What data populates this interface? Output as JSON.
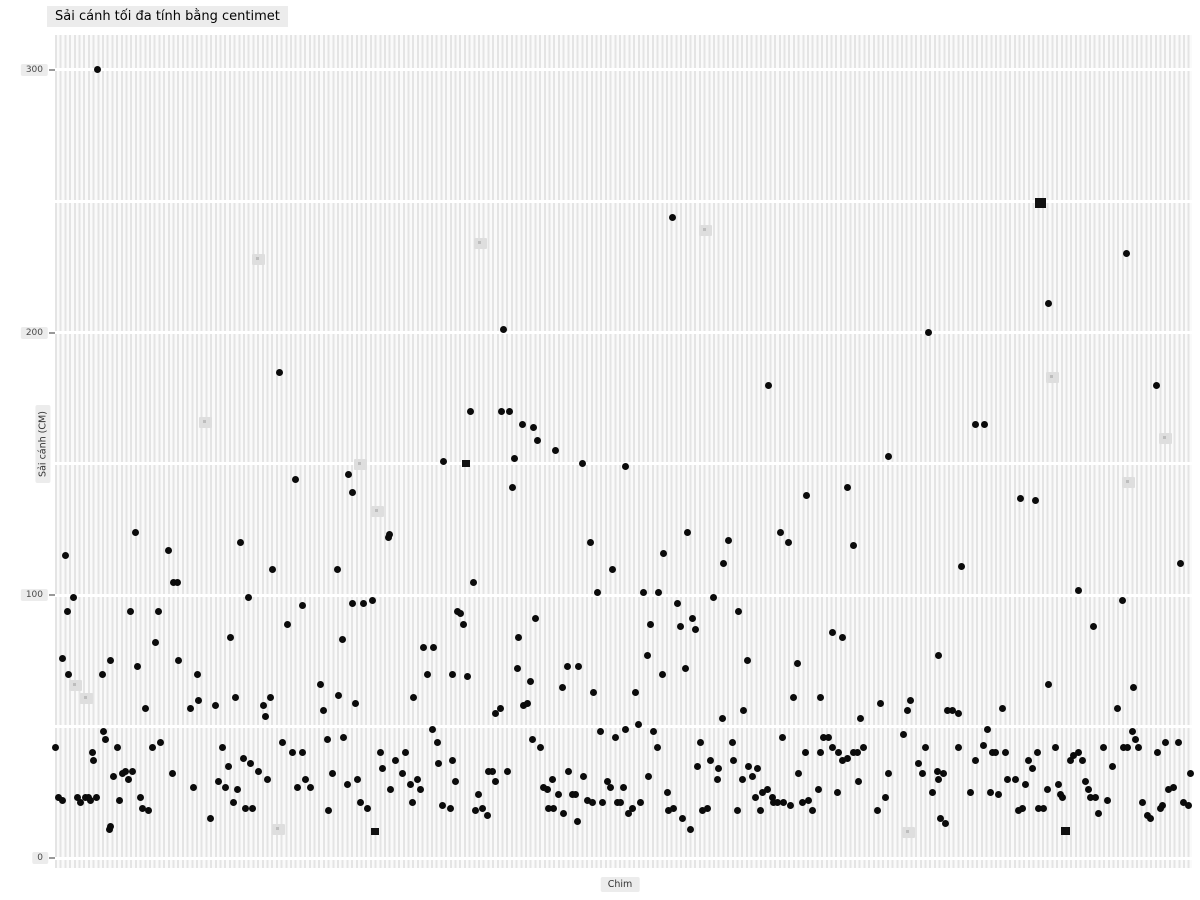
{
  "title": "Sải cánh tối đa tính bằng centimet",
  "x_axis": {
    "label": "Chim"
  },
  "y_axis": {
    "label": "Sải cánh (CM)",
    "ticks": [
      {
        "value": 0,
        "label": "0"
      },
      {
        "value": 100,
        "label": "100"
      },
      {
        "value": 200,
        "label": "200"
      },
      {
        "value": 300,
        "label": "300"
      }
    ],
    "gridlines_cm": [
      0,
      50,
      100,
      150,
      200,
      250,
      300
    ]
  },
  "colors": {
    "background": "#ffffff",
    "stripe": "#e4e4e4",
    "stripe_gap": "#fafafa",
    "point": "#0b0b0b",
    "label_box": "#ececec",
    "tick_text": "#4a4a4a",
    "gridline": "#ffffff"
  },
  "chart_data": {
    "type": "scatter",
    "title": "Sải cánh tối đa tính bằng centimet",
    "xlabel": "Chim",
    "ylabel": "Sải cánh (CM)",
    "ylim": [
      0,
      315
    ],
    "x_unit": "pixel column per bird category (unlabeled categorical axis)",
    "y_unit": "cm",
    "points": [
      [
        97,
        300
      ],
      [
        672,
        244
      ],
      [
        1126,
        230
      ],
      [
        1048,
        211
      ],
      [
        503,
        201
      ],
      [
        928,
        200
      ],
      [
        279,
        185
      ],
      [
        768,
        180
      ],
      [
        1156,
        180
      ],
      [
        470,
        170
      ],
      [
        501,
        170
      ],
      [
        509,
        170
      ],
      [
        975,
        165
      ],
      [
        984,
        165
      ],
      [
        522,
        165
      ],
      [
        533,
        164
      ],
      [
        537,
        159
      ],
      [
        555,
        155
      ],
      [
        443,
        151
      ],
      [
        514,
        152
      ],
      [
        582,
        150
      ],
      [
        512,
        141
      ],
      [
        295,
        144
      ],
      [
        348,
        146
      ],
      [
        352,
        139
      ],
      [
        389,
        123
      ],
      [
        806,
        138
      ],
      [
        847,
        141
      ],
      [
        888,
        153
      ],
      [
        1020,
        137
      ],
      [
        1035,
        136
      ],
      [
        625,
        149
      ],
      [
        135,
        124
      ],
      [
        240,
        120
      ],
      [
        168,
        117
      ],
      [
        65,
        115
      ],
      [
        388,
        122
      ],
      [
        728,
        121
      ],
      [
        687,
        124
      ],
      [
        780,
        124
      ],
      [
        853,
        119
      ],
      [
        788,
        120
      ],
      [
        590,
        120
      ],
      [
        663,
        116
      ],
      [
        723,
        112
      ],
      [
        612,
        110
      ],
      [
        473,
        105
      ],
      [
        173,
        105
      ],
      [
        177,
        105
      ],
      [
        272,
        110
      ],
      [
        337,
        110
      ],
      [
        73,
        99
      ],
      [
        248,
        99
      ],
      [
        372,
        98
      ],
      [
        363,
        97
      ],
      [
        352,
        97
      ],
      [
        597,
        101
      ],
      [
        643,
        101
      ],
      [
        658,
        101
      ],
      [
        677,
        97
      ],
      [
        713,
        99
      ],
      [
        961,
        111
      ],
      [
        1078,
        102
      ],
      [
        1122,
        98
      ],
      [
        1180,
        112
      ],
      [
        67,
        94
      ],
      [
        130,
        94
      ],
      [
        158,
        94
      ],
      [
        302,
        96
      ],
      [
        457,
        94
      ],
      [
        460,
        93
      ],
      [
        463,
        89
      ],
      [
        535,
        91
      ],
      [
        650,
        89
      ],
      [
        692,
        91
      ],
      [
        680,
        88
      ],
      [
        695,
        87
      ],
      [
        738,
        94
      ],
      [
        832,
        86
      ],
      [
        842,
        84
      ],
      [
        287,
        89
      ],
      [
        230,
        84
      ],
      [
        155,
        82
      ],
      [
        342,
        83
      ],
      [
        423,
        80
      ],
      [
        433,
        80
      ],
      [
        518,
        84
      ],
      [
        1093,
        88
      ],
      [
        647,
        77
      ],
      [
        110,
        75
      ],
      [
        137,
        73
      ],
      [
        178,
        75
      ],
      [
        62,
        76
      ],
      [
        68,
        70
      ],
      [
        102,
        70
      ],
      [
        197,
        70
      ],
      [
        747,
        75
      ],
      [
        517,
        72
      ],
      [
        567,
        73
      ],
      [
        578,
        73
      ],
      [
        685,
        72
      ],
      [
        662,
        70
      ],
      [
        797,
        74
      ],
      [
        427,
        70
      ],
      [
        452,
        70
      ],
      [
        530,
        67
      ],
      [
        562,
        65
      ],
      [
        467,
        69
      ],
      [
        320,
        66
      ],
      [
        938,
        77
      ],
      [
        593,
        63
      ],
      [
        635,
        63
      ],
      [
        793,
        61
      ],
      [
        820,
        61
      ],
      [
        235,
        61
      ],
      [
        270,
        61
      ],
      [
        338,
        62
      ],
      [
        413,
        61
      ],
      [
        1048,
        66
      ],
      [
        1133,
        65
      ],
      [
        55,
        42
      ],
      [
        58,
        23
      ],
      [
        62,
        22
      ],
      [
        77,
        23
      ],
      [
        80,
        21
      ],
      [
        85,
        23
      ],
      [
        88,
        23
      ],
      [
        90,
        22
      ],
      [
        92,
        40
      ],
      [
        93,
        37
      ],
      [
        96,
        23
      ],
      [
        103,
        48
      ],
      [
        105,
        45
      ],
      [
        109,
        11
      ],
      [
        113,
        31
      ],
      [
        117,
        42
      ],
      [
        119,
        22
      ],
      [
        122,
        32
      ],
      [
        125,
        33
      ],
      [
        128,
        30
      ],
      [
        132,
        33
      ],
      [
        140,
        23
      ],
      [
        142,
        19
      ],
      [
        148,
        18
      ],
      [
        145,
        57
      ],
      [
        152,
        42
      ],
      [
        160,
        44
      ],
      [
        172,
        32
      ],
      [
        190,
        57
      ],
      [
        193,
        27
      ],
      [
        198,
        60
      ],
      [
        210,
        15
      ],
      [
        215,
        58
      ],
      [
        218,
        29
      ],
      [
        222,
        42
      ],
      [
        225,
        27
      ],
      [
        228,
        35
      ],
      [
        233,
        21
      ],
      [
        237,
        26
      ],
      [
        243,
        38
      ],
      [
        245,
        19
      ],
      [
        250,
        36
      ],
      [
        252,
        19
      ],
      [
        258,
        33
      ],
      [
        263,
        58
      ],
      [
        265,
        54
      ],
      [
        267,
        30
      ],
      [
        282,
        44
      ],
      [
        292,
        40
      ],
      [
        297,
        27
      ],
      [
        302,
        40
      ],
      [
        305,
        30
      ],
      [
        310,
        27
      ],
      [
        323,
        56
      ],
      [
        327,
        45
      ],
      [
        328,
        18
      ],
      [
        332,
        32
      ],
      [
        343,
        46
      ],
      [
        347,
        28
      ],
      [
        355,
        59
      ],
      [
        357,
        30
      ],
      [
        360,
        21
      ],
      [
        367,
        19
      ],
      [
        380,
        40
      ],
      [
        382,
        34
      ],
      [
        390,
        26
      ],
      [
        395,
        37
      ],
      [
        402,
        32
      ],
      [
        405,
        40
      ],
      [
        410,
        28
      ],
      [
        412,
        21
      ],
      [
        417,
        30
      ],
      [
        420,
        26
      ],
      [
        432,
        49
      ],
      [
        437,
        44
      ],
      [
        438,
        36
      ],
      [
        442,
        20
      ],
      [
        450,
        19
      ],
      [
        452,
        37
      ],
      [
        110,
        12
      ],
      [
        495,
        55
      ],
      [
        500,
        57
      ],
      [
        523,
        58
      ],
      [
        527,
        59
      ],
      [
        532,
        45
      ],
      [
        540,
        42
      ],
      [
        455,
        29
      ],
      [
        478,
        24
      ],
      [
        475,
        18
      ],
      [
        482,
        19
      ],
      [
        487,
        16
      ],
      [
        488,
        33
      ],
      [
        492,
        33
      ],
      [
        495,
        29
      ],
      [
        507,
        33
      ],
      [
        543,
        27
      ],
      [
        547,
        26
      ],
      [
        552,
        30
      ],
      [
        558,
        24
      ],
      [
        548,
        19
      ],
      [
        553,
        19
      ],
      [
        563,
        17
      ],
      [
        568,
        33
      ],
      [
        572,
        24
      ],
      [
        575,
        24
      ],
      [
        577,
        14
      ],
      [
        583,
        31
      ],
      [
        587,
        22
      ],
      [
        592,
        21
      ],
      [
        600,
        48
      ],
      [
        602,
        21
      ],
      [
        607,
        29
      ],
      [
        610,
        27
      ],
      [
        615,
        46
      ],
      [
        617,
        21
      ],
      [
        620,
        21
      ],
      [
        623,
        27
      ],
      [
        625,
        49
      ],
      [
        638,
        51
      ],
      [
        628,
        17
      ],
      [
        632,
        19
      ],
      [
        640,
        21
      ],
      [
        648,
        31
      ],
      [
        653,
        48
      ],
      [
        657,
        42
      ],
      [
        667,
        25
      ],
      [
        668,
        18
      ],
      [
        673,
        19
      ],
      [
        682,
        15
      ],
      [
        690,
        11
      ],
      [
        697,
        35
      ],
      [
        700,
        44
      ],
      [
        702,
        18
      ],
      [
        707,
        19
      ],
      [
        710,
        37
      ],
      [
        717,
        30
      ],
      [
        718,
        34
      ],
      [
        722,
        53
      ],
      [
        732,
        44
      ],
      [
        733,
        37
      ],
      [
        737,
        18
      ],
      [
        742,
        30
      ],
      [
        743,
        56
      ],
      [
        748,
        35
      ],
      [
        757,
        34
      ],
      [
        752,
        31
      ],
      [
        755,
        23
      ],
      [
        760,
        18
      ],
      [
        762,
        25
      ],
      [
        767,
        26
      ],
      [
        772,
        23
      ],
      [
        773,
        21
      ],
      [
        777,
        21
      ],
      [
        782,
        46
      ],
      [
        783,
        21
      ],
      [
        790,
        20
      ],
      [
        798,
        32
      ],
      [
        802,
        21
      ],
      [
        805,
        40
      ],
      [
        808,
        22
      ],
      [
        812,
        18
      ],
      [
        818,
        26
      ],
      [
        820,
        40
      ],
      [
        823,
        46
      ],
      [
        828,
        46
      ],
      [
        832,
        42
      ],
      [
        837,
        25
      ],
      [
        838,
        40
      ],
      [
        842,
        37
      ],
      [
        847,
        38
      ],
      [
        853,
        40
      ],
      [
        860,
        53
      ],
      [
        863,
        42
      ],
      [
        857,
        40
      ],
      [
        858,
        29
      ],
      [
        877,
        18
      ],
      [
        880,
        59
      ],
      [
        885,
        23
      ],
      [
        888,
        32
      ],
      [
        903,
        47
      ],
      [
        907,
        56
      ],
      [
        910,
        60
      ],
      [
        918,
        36
      ],
      [
        922,
        32
      ],
      [
        925,
        42
      ],
      [
        932,
        25
      ],
      [
        937,
        33
      ],
      [
        938,
        30
      ],
      [
        940,
        15
      ],
      [
        945,
        13
      ],
      [
        943,
        32
      ],
      [
        947,
        56
      ],
      [
        952,
        56
      ],
      [
        958,
        55
      ],
      [
        958,
        42
      ],
      [
        970,
        25
      ],
      [
        975,
        37
      ],
      [
        983,
        43
      ],
      [
        987,
        49
      ],
      [
        990,
        25
      ],
      [
        992,
        40
      ],
      [
        995,
        40
      ],
      [
        998,
        24
      ],
      [
        1002,
        57
      ],
      [
        1005,
        40
      ],
      [
        1007,
        30
      ],
      [
        1015,
        30
      ],
      [
        1018,
        18
      ],
      [
        1022,
        19
      ],
      [
        1025,
        28
      ],
      [
        1028,
        37
      ],
      [
        1032,
        34
      ],
      [
        1037,
        40
      ],
      [
        1038,
        19
      ],
      [
        1043,
        19
      ],
      [
        1047,
        26
      ],
      [
        1055,
        42
      ],
      [
        1058,
        28
      ],
      [
        1060,
        24
      ],
      [
        1062,
        23
      ],
      [
        1070,
        37
      ],
      [
        1073,
        39
      ],
      [
        1078,
        40
      ],
      [
        1082,
        37
      ],
      [
        1085,
        29
      ],
      [
        1088,
        26
      ],
      [
        1090,
        23
      ],
      [
        1095,
        23
      ],
      [
        1098,
        17
      ],
      [
        1103,
        42
      ],
      [
        1107,
        22
      ],
      [
        1112,
        35
      ],
      [
        1117,
        57
      ],
      [
        1123,
        42
      ],
      [
        1127,
        42
      ],
      [
        1132,
        48
      ],
      [
        1135,
        45
      ],
      [
        1138,
        42
      ],
      [
        1142,
        21
      ],
      [
        1147,
        16
      ],
      [
        1150,
        15
      ],
      [
        1157,
        40
      ],
      [
        1160,
        19
      ],
      [
        1162,
        20
      ],
      [
        1165,
        44
      ],
      [
        1168,
        26
      ],
      [
        1173,
        27
      ],
      [
        1178,
        44
      ],
      [
        1183,
        21
      ],
      [
        1188,
        20
      ],
      [
        1190,
        32
      ]
    ],
    "square_points": [
      [
        375,
        10,
        8
      ],
      [
        1065,
        10,
        9
      ],
      [
        466,
        150,
        8
      ],
      [
        1040,
        249,
        11
      ]
    ],
    "faint_label_boxes": [
      [
        258,
        228
      ],
      [
        480,
        234
      ],
      [
        705,
        239
      ],
      [
        205,
        166
      ],
      [
        360,
        150
      ],
      [
        377,
        132
      ],
      [
        1052,
        183
      ],
      [
        1128,
        143
      ],
      [
        1165,
        160
      ],
      [
        75,
        66
      ],
      [
        86,
        61
      ],
      [
        278,
        11
      ],
      [
        908,
        10
      ]
    ]
  }
}
